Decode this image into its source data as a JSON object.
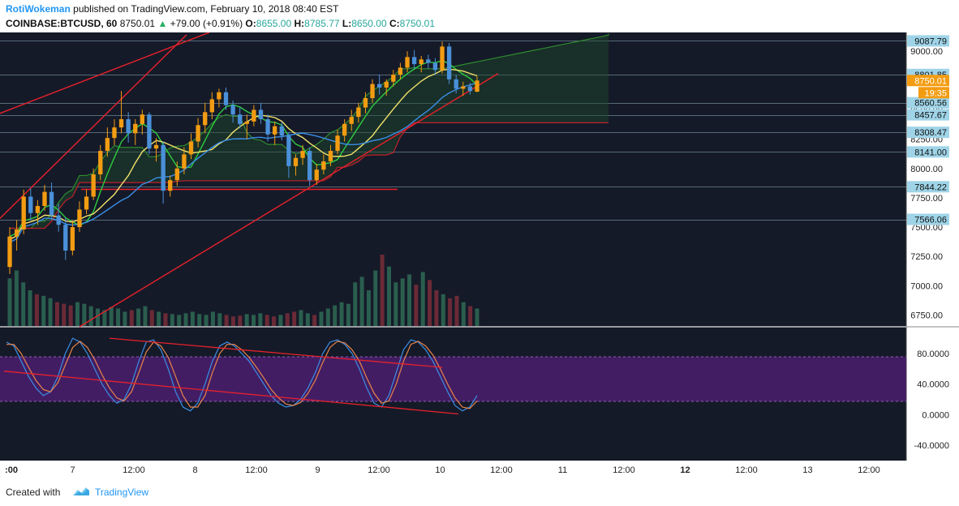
{
  "header": {
    "author": "RotiWokeman",
    "published_text": "published on TradingView.com, February 10, 2018 08:40 EST",
    "symbol": "COINBASE:BTCUSD, 60",
    "last_price": "8750.01",
    "change_arrow": "▲",
    "change": "+79.00 (+0.91%)",
    "o_label": "O:",
    "o_value": "8655.00",
    "h_label": "H:",
    "h_value": "8785.77",
    "l_label": "L:",
    "l_value": "8650.00",
    "c_label": "C:",
    "c_value": "8750.01"
  },
  "footer": {
    "created_with": "Created with",
    "brand": "TradingView"
  },
  "colors": {
    "background": "#151a28",
    "up_candle": "#f39c12",
    "down_candle": "#4a90d9",
    "trendline": "#e8212b",
    "price_badge": "#f39c12",
    "level_badge": "#9fd4e8",
    "stoch_band": "#4b1f6e"
  },
  "chart_data": {
    "type": "candlestick",
    "symbol": "COINBASE:BTCUSD",
    "interval": "60",
    "x_axis_ticks": [
      ":00",
      "7",
      "12:00",
      "8",
      "12:00",
      "9",
      "12:00",
      "10",
      "12:00",
      "11",
      "12:00",
      "12",
      "12:00",
      "13",
      "12:00"
    ],
    "x_axis_bold_ticks": [
      ":00",
      "12"
    ],
    "price_axis": {
      "ticks": [
        "9000.00",
        "8750.00",
        "8500.00",
        "8250.00",
        "8000.00",
        "7750.00",
        "7500.00",
        "7250.00",
        "7000.00",
        "6750.00"
      ],
      "range": [
        6650,
        9160
      ]
    },
    "price_levels": [
      9087.79,
      8801.85,
      8560.56,
      8457.67,
      8308.47,
      8141.0,
      7844.22,
      7566.06
    ],
    "level_labels": [
      "9087.79",
      "8801.85",
      "8560.56",
      "8457.67",
      "8308.47",
      "8141.00",
      "7844.22",
      "7566.06"
    ],
    "current_price_label": "8750.01",
    "countdown": "19:35",
    "candles": [
      [
        7160,
        7500,
        7100,
        7420
      ],
      [
        7420,
        7560,
        7300,
        7480
      ],
      [
        7480,
        7820,
        7440,
        7760
      ],
      [
        7760,
        7830,
        7560,
        7620
      ],
      [
        7620,
        7730,
        7520,
        7680
      ],
      [
        7680,
        7860,
        7640,
        7800
      ],
      [
        7800,
        7880,
        7560,
        7600
      ],
      [
        7600,
        7700,
        7460,
        7520
      ],
      [
        7520,
        7580,
        7220,
        7300
      ],
      [
        7300,
        7560,
        7260,
        7500
      ],
      [
        7500,
        7720,
        7460,
        7650
      ],
      [
        7650,
        7820,
        7610,
        7760
      ],
      [
        7760,
        8000,
        7730,
        7950
      ],
      [
        7950,
        8200,
        7900,
        8150
      ],
      [
        8150,
        8350,
        8100,
        8260
      ],
      [
        8260,
        8420,
        8200,
        8350
      ],
      [
        8350,
        8660,
        8300,
        8420
      ],
      [
        8420,
        8480,
        8220,
        8300
      ],
      [
        8300,
        8420,
        8200,
        8380
      ],
      [
        8380,
        8500,
        8290,
        8460
      ],
      [
        8460,
        8480,
        8120,
        8170
      ],
      [
        8170,
        8260,
        8060,
        8200
      ],
      [
        8200,
        8230,
        7700,
        7810
      ],
      [
        7810,
        7940,
        7760,
        7900
      ],
      [
        7900,
        8060,
        7850,
        8000
      ],
      [
        8000,
        8180,
        7950,
        8120
      ],
      [
        8120,
        8300,
        8080,
        8230
      ],
      [
        8230,
        8430,
        8180,
        8370
      ],
      [
        8370,
        8560,
        8300,
        8480
      ],
      [
        8480,
        8650,
        8420,
        8590
      ],
      [
        8590,
        8680,
        8520,
        8650
      ],
      [
        8650,
        8690,
        8500,
        8540
      ],
      [
        8540,
        8580,
        8390,
        8460
      ],
      [
        8460,
        8520,
        8340,
        8380
      ],
      [
        8380,
        8460,
        8250,
        8400
      ],
      [
        8400,
        8540,
        8360,
        8500
      ],
      [
        8500,
        8560,
        8380,
        8420
      ],
      [
        8420,
        8460,
        8230,
        8290
      ],
      [
        8290,
        8400,
        8200,
        8360
      ],
      [
        8360,
        8400,
        8240,
        8280
      ],
      [
        8280,
        8310,
        7920,
        8020
      ],
      [
        8020,
        8120,
        7940,
        8090
      ],
      [
        8090,
        8200,
        8030,
        8150
      ],
      [
        8150,
        8180,
        7850,
        7900
      ],
      [
        7900,
        8040,
        7860,
        7990
      ],
      [
        7990,
        8120,
        7950,
        8060
      ],
      [
        8060,
        8200,
        8020,
        8150
      ],
      [
        8150,
        8330,
        8120,
        8280
      ],
      [
        8280,
        8420,
        8230,
        8380
      ],
      [
        8380,
        8500,
        8320,
        8440
      ],
      [
        8440,
        8560,
        8390,
        8520
      ],
      [
        8520,
        8650,
        8470,
        8600
      ],
      [
        8600,
        8760,
        8560,
        8720
      ],
      [
        8720,
        8800,
        8630,
        8690
      ],
      [
        8690,
        8760,
        8620,
        8740
      ],
      [
        8740,
        8840,
        8700,
        8800
      ],
      [
        8800,
        8900,
        8760,
        8860
      ],
      [
        8860,
        9000,
        8820,
        8950
      ],
      [
        8950,
        9010,
        8850,
        8890
      ],
      [
        8890,
        8960,
        8820,
        8930
      ],
      [
        8930,
        8970,
        8850,
        8900
      ],
      [
        8900,
        8940,
        8800,
        8840
      ],
      [
        8840,
        9080,
        8810,
        9040
      ],
      [
        9040,
        9070,
        8720,
        8760
      ],
      [
        8760,
        8800,
        8640,
        8680
      ],
      [
        8680,
        8740,
        8620,
        8700
      ],
      [
        8700,
        8730,
        8630,
        8660
      ],
      [
        8655,
        8786,
        8650,
        8750
      ]
    ],
    "stochastic": {
      "ticks": [
        "80.0000",
        "40.0000",
        "0.0000",
        "-40.0000"
      ],
      "range": [
        -60,
        115
      ],
      "band": [
        20,
        80
      ],
      "k": [
        95,
        90,
        70,
        50,
        35,
        25,
        30,
        50,
        80,
        100,
        95,
        80,
        60,
        40,
        25,
        15,
        20,
        40,
        70,
        95,
        98,
        85,
        60,
        30,
        10,
        5,
        15,
        40,
        70,
        90,
        95,
        90,
        80,
        70,
        55,
        40,
        25,
        15,
        10,
        12,
        20,
        35,
        55,
        80,
        95,
        98,
        92,
        80,
        60,
        35,
        15,
        10,
        25,
        55,
        85,
        98,
        95,
        85,
        70,
        50,
        30,
        12,
        5,
        10,
        25
      ],
      "d": [
        92,
        92,
        80,
        62,
        45,
        33,
        30,
        42,
        65,
        88,
        96,
        88,
        72,
        52,
        35,
        22,
        18,
        30,
        55,
        82,
        95,
        90,
        75,
        50,
        25,
        10,
        10,
        25,
        55,
        80,
        92,
        92,
        85,
        75,
        62,
        48,
        33,
        22,
        14,
        12,
        16,
        28,
        45,
        68,
        88,
        96,
        94,
        85,
        70,
        48,
        28,
        15,
        18,
        40,
        70,
        92,
        96,
        90,
        78,
        60,
        40,
        22,
        10,
        8,
        18
      ]
    },
    "volume": [
      60,
      70,
      55,
      45,
      40,
      38,
      35,
      30,
      28,
      26,
      30,
      28,
      25,
      22,
      20,
      24,
      22,
      18,
      20,
      22,
      25,
      20,
      18,
      16,
      15,
      14,
      16,
      18,
      15,
      14,
      18,
      16,
      14,
      12,
      13,
      15,
      14,
      16,
      14,
      12,
      14,
      16,
      18,
      20,
      16,
      14,
      18,
      22,
      26,
      30,
      28,
      55,
      62,
      45,
      70,
      90,
      75,
      55,
      60,
      65,
      52,
      68,
      58,
      45,
      40,
      35,
      38,
      30,
      25,
      22
    ]
  }
}
